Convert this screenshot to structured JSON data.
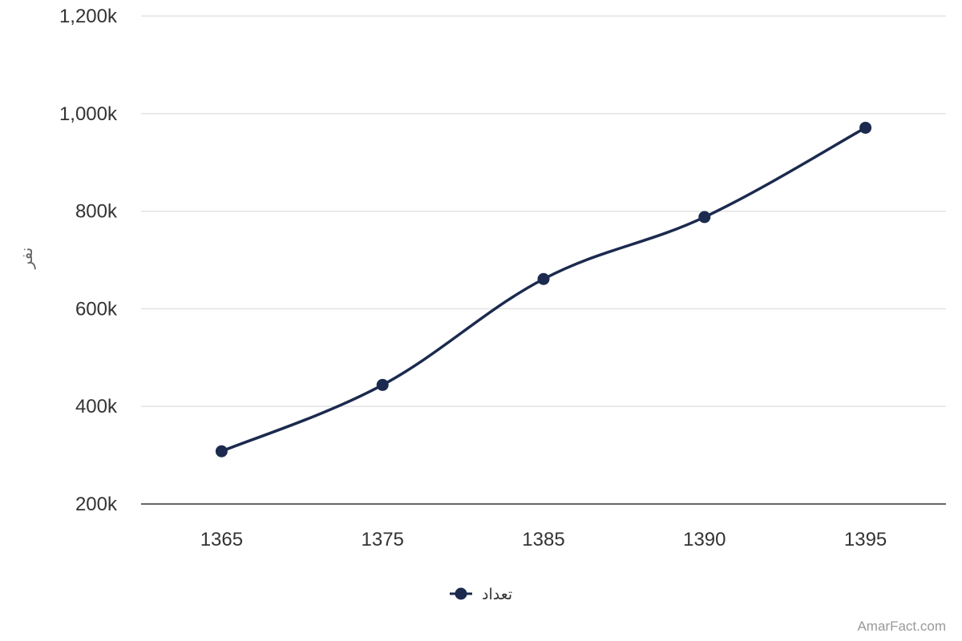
{
  "chart_data": {
    "type": "line",
    "categories": [
      "1365",
      "1375",
      "1385",
      "1390",
      "1395"
    ],
    "series": [
      {
        "name": "تعداد",
        "values": [
          308000,
          444000,
          661000,
          788000,
          971000
        ],
        "color": "#1b2a4e"
      }
    ],
    "ylabel": "نفر",
    "yticks": [
      "200k",
      "400k",
      "600k",
      "800k",
      "1,000k",
      "1,200k"
    ],
    "ylim": [
      200000,
      1200000
    ],
    "grid": true,
    "legend_position": "bottom-center",
    "line_style": "smooth"
  },
  "credit": "AmarFact.com"
}
